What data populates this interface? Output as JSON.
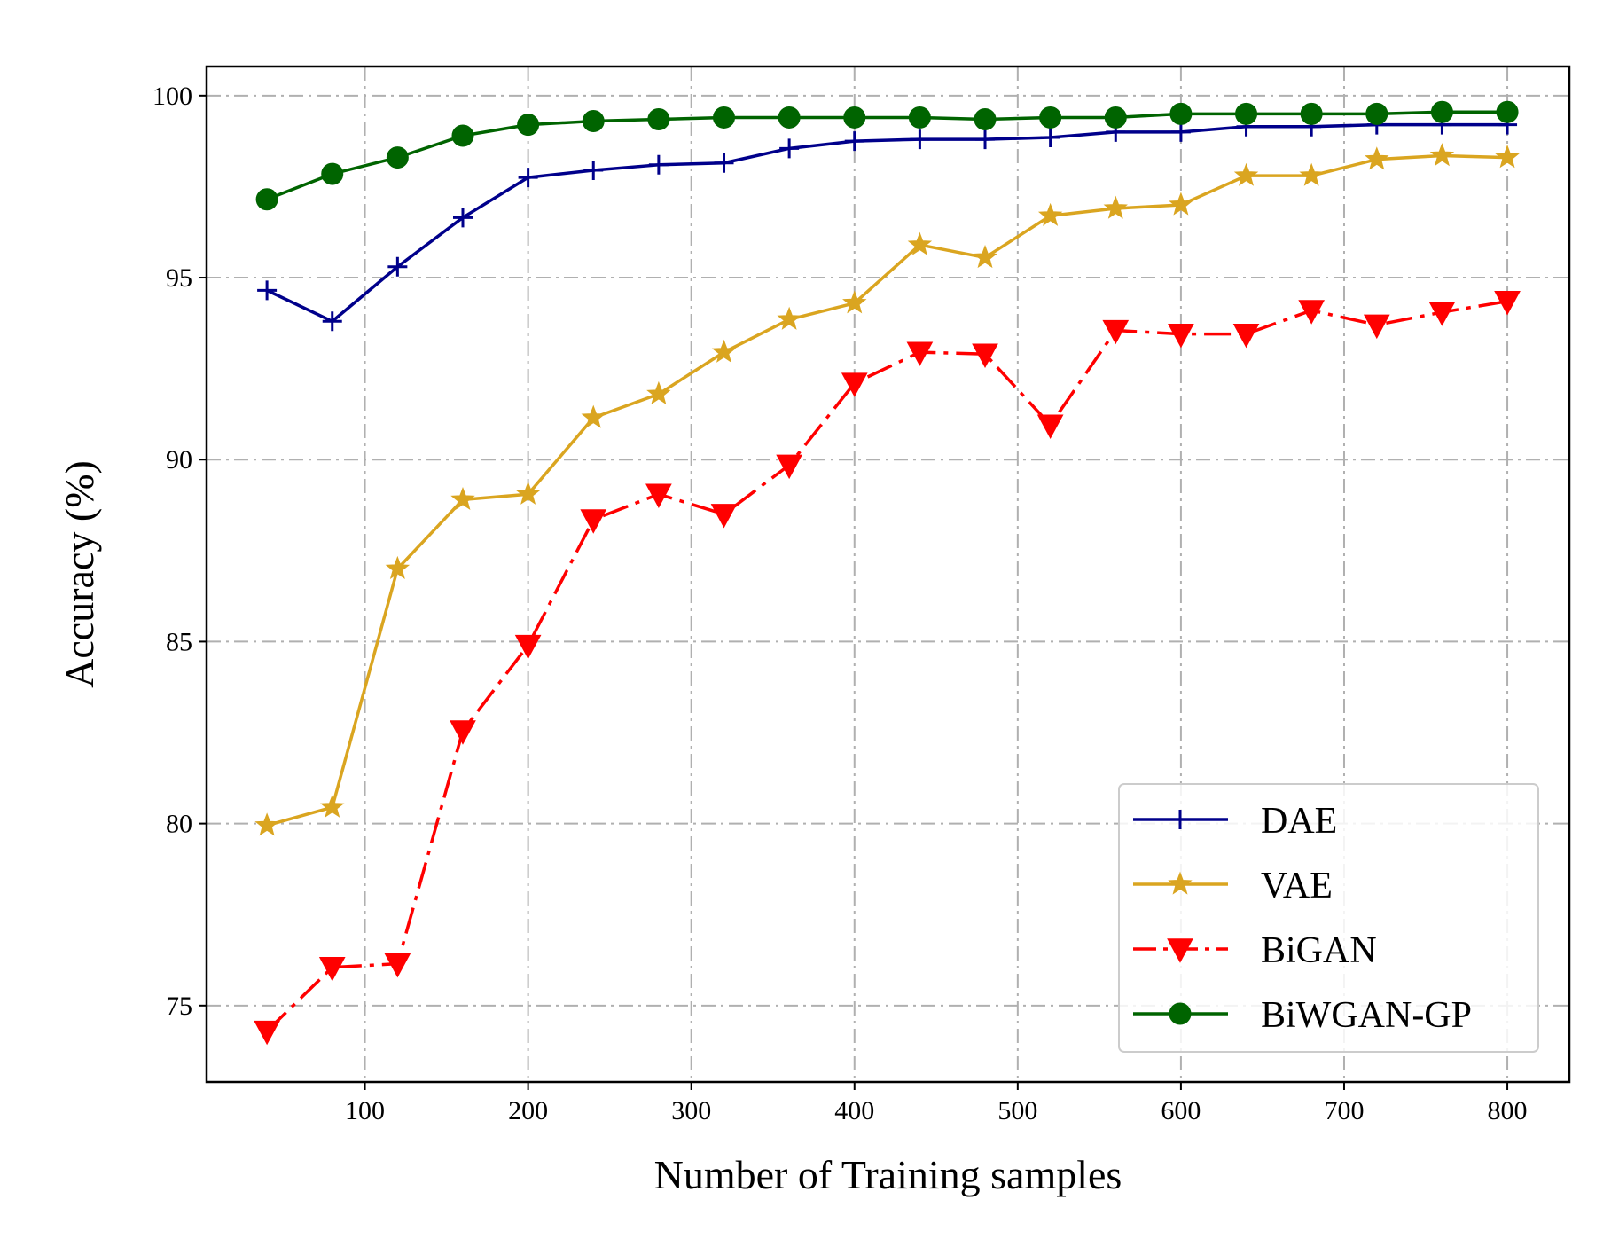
{
  "chart_data": {
    "type": "line",
    "title": "",
    "xlabel": "Number of Training samples",
    "ylabel": "Accuracy (%)",
    "xlim": [
      3,
      838
    ],
    "ylim": [
      72.9,
      100.8
    ],
    "xticks": [
      100,
      200,
      300,
      400,
      500,
      600,
      700,
      800
    ],
    "yticks": [
      75,
      80,
      85,
      90,
      95,
      100
    ],
    "grid": true,
    "legend_position": "bottom-right",
    "x": [
      40,
      80,
      120,
      160,
      200,
      240,
      280,
      320,
      360,
      400,
      440,
      480,
      520,
      560,
      600,
      640,
      680,
      720,
      760,
      800
    ],
    "series": [
      {
        "name": "DAE",
        "color": "#00008b",
        "linestyle": "solid",
        "marker": "plus",
        "values": [
          94.65,
          93.8,
          95.3,
          96.65,
          97.75,
          97.95,
          98.1,
          98.15,
          98.55,
          98.75,
          98.8,
          98.8,
          98.85,
          99.0,
          99.0,
          99.15,
          99.15,
          99.2,
          99.2,
          99.2
        ]
      },
      {
        "name": "VAE",
        "color": "#daa520",
        "linestyle": "solid",
        "marker": "star",
        "values": [
          79.95,
          80.45,
          87.0,
          88.9,
          89.05,
          91.15,
          91.8,
          92.95,
          93.85,
          94.3,
          95.9,
          95.55,
          96.7,
          96.9,
          97.0,
          97.8,
          97.8,
          98.25,
          98.35,
          98.3
        ]
      },
      {
        "name": "BiGAN",
        "color": "#ff0000",
        "linestyle": "dashdot",
        "marker": "triangle-down",
        "values": [
          74.3,
          76.05,
          76.15,
          82.55,
          84.9,
          88.35,
          89.05,
          88.5,
          89.85,
          92.1,
          92.95,
          92.9,
          90.95,
          93.55,
          93.45,
          93.45,
          94.1,
          93.7,
          94.05,
          94.35
        ]
      },
      {
        "name": "BiWGAN-GP",
        "color": "#006400",
        "linestyle": "solid",
        "marker": "circle",
        "values": [
          97.15,
          97.85,
          98.3,
          98.9,
          99.2,
          99.3,
          99.35,
          99.4,
          99.4,
          99.4,
          99.4,
          99.35,
          99.4,
          99.4,
          99.5,
          99.5,
          99.5,
          99.5,
          99.55,
          99.55
        ]
      }
    ]
  }
}
